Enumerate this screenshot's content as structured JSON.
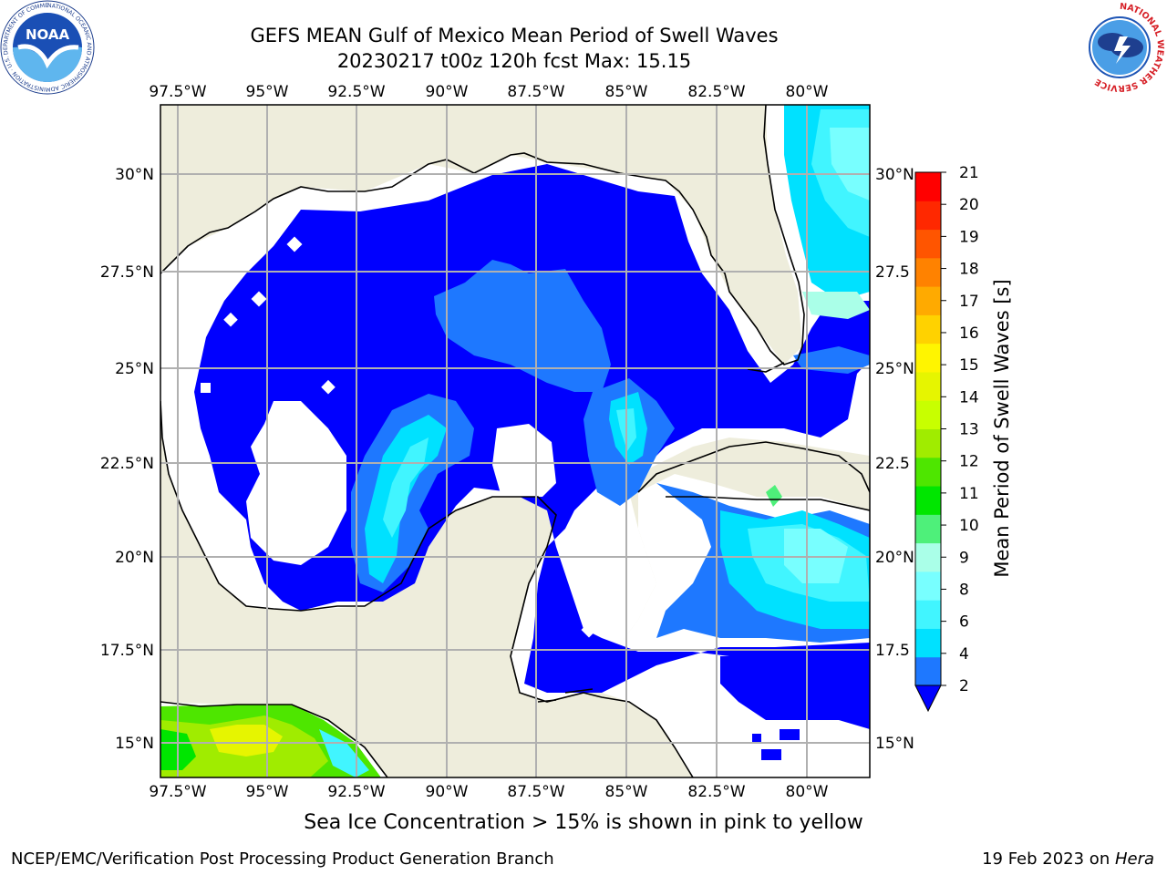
{
  "header": {
    "title_line1": "GEFS MEAN Gulf of Mexico Mean Period of Swell Waves",
    "title_line2": "20230217 t00z 120h fcst   Max: 15.15",
    "left_logo": "noaa-logo",
    "right_logo": "nws-logo",
    "noaa_logo_text": "NOAA",
    "noaa_ring_text": "NATIONAL OCEANIC AND ATMOSPHERIC ADMINISTRATION · U.S. DEPARTMENT OF COMMERCE",
    "nws_ring_text": "NATIONAL WEATHER SERVICE"
  },
  "map": {
    "lon_labels": [
      "97.5°W",
      "95°W",
      "92.5°W",
      "90°W",
      "87.5°W",
      "85°W",
      "82.5°W",
      "80°W"
    ],
    "lat_labels_left": [
      "30°N",
      "27.5°N",
      "25°N",
      "22.5°N",
      "20°N",
      "17.5°N",
      "15°N"
    ],
    "lat_labels_right": [
      "30°N",
      "27.5",
      "25°N",
      "22.5",
      "20°N",
      "17.5",
      "15°N"
    ],
    "colors": {
      "land": "#eeeddc",
      "water_low": "#0000ff",
      "grid": "#b0b0b0"
    }
  },
  "colorbar": {
    "label": "Mean Period of Swell Waves [s]",
    "ticks": [
      "2",
      "4",
      "6",
      "8",
      "9",
      "10",
      "11",
      "12",
      "13",
      "14",
      "15",
      "16",
      "17",
      "18",
      "19",
      "20",
      "21"
    ],
    "colors": [
      "#1e78ff",
      "#00e1ff",
      "#41f5ff",
      "#78ffff",
      "#aaffe8",
      "#4ef07a",
      "#00e600",
      "#4ee600",
      "#a0ec00",
      "#c8ff00",
      "#e6f500",
      "#fff500",
      "#ffd200",
      "#ffaa00",
      "#ff8200",
      "#ff5500",
      "#ff2800",
      "#ff0000"
    ],
    "under_color": "#0000ff"
  },
  "notes": {
    "ice": "Sea Ice Concentration > 15% is shown in pink to yellow"
  },
  "footer": {
    "left": "NCEP/EMC/Verification Post Processing Product Generation Branch",
    "right_date": "19 Feb 2023 on ",
    "right_host": "Hera"
  }
}
